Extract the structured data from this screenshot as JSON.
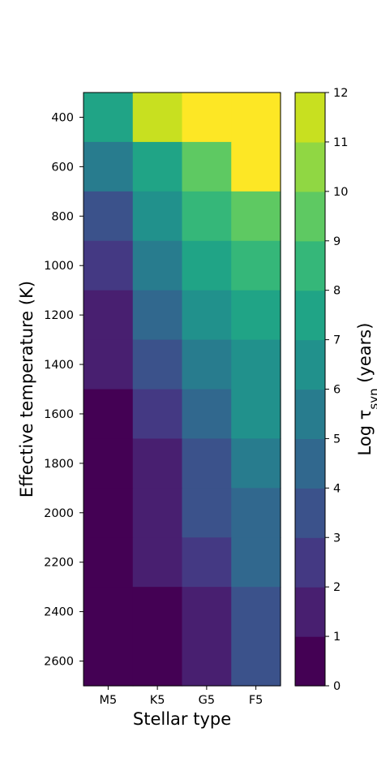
{
  "chart_data": {
    "type": "heatmap",
    "xlabel": "Stellar type",
    "ylabel": "Effective temperature (K)",
    "x_categories": [
      "M5",
      "K5",
      "G5",
      "F5"
    ],
    "y_values": [
      400,
      500,
      600,
      700,
      800,
      900,
      1000,
      1100,
      1200,
      1300,
      1400,
      1500,
      1600,
      1700,
      1800,
      1900,
      2000,
      2100,
      2200,
      2300,
      2400,
      2500,
      2600
    ],
    "y_bins": [
      {
        "y_from": 300,
        "y_to": 500,
        "values": [
          7,
          11,
          12,
          12
        ]
      },
      {
        "y_from": 500,
        "y_to": 700,
        "values": [
          5,
          7,
          9,
          12
        ]
      },
      {
        "y_from": 700,
        "y_to": 900,
        "values": [
          3,
          6,
          8,
          9
        ]
      },
      {
        "y_from": 900,
        "y_to": 1100,
        "values": [
          2,
          5,
          7,
          8
        ]
      },
      {
        "y_from": 1100,
        "y_to": 1300,
        "values": [
          1,
          4,
          6,
          7
        ]
      },
      {
        "y_from": 1300,
        "y_to": 1500,
        "values": [
          1,
          3,
          5,
          6
        ]
      },
      {
        "y_from": 1500,
        "y_to": 1700,
        "values": [
          0,
          2,
          4,
          6
        ]
      },
      {
        "y_from": 1700,
        "y_to": 1900,
        "values": [
          0,
          1,
          3,
          5
        ]
      },
      {
        "y_from": 1900,
        "y_to": 2100,
        "values": [
          0,
          1,
          3,
          4
        ]
      },
      {
        "y_from": 2100,
        "y_to": 2300,
        "values": [
          0,
          1,
          2,
          4
        ]
      },
      {
        "y_from": 2300,
        "y_to": 2700,
        "values": [
          0,
          0,
          1,
          3
        ]
      }
    ],
    "ylim": [
      2700,
      300
    ],
    "y_ticks": [
      "400",
      "600",
      "800",
      "1000",
      "1200",
      "1400",
      "1600",
      "1800",
      "2000",
      "2200",
      "2400",
      "2600"
    ],
    "colorbar": {
      "label": "Log τ",
      "label_subscript": "syn",
      "label_suffix": " (years)",
      "ticks": [
        "0",
        "1",
        "2",
        "3",
        "4",
        "5",
        "6",
        "7",
        "8",
        "9",
        "10",
        "11",
        "12"
      ],
      "range": [
        0,
        12
      ],
      "colors": [
        "#440154",
        "#481f70",
        "#443983",
        "#3b528b",
        "#31688e",
        "#287c8e",
        "#21918c",
        "#20a486",
        "#35b779",
        "#5ec962",
        "#90d743",
        "#c8e020",
        "#fde725"
      ]
    }
  }
}
